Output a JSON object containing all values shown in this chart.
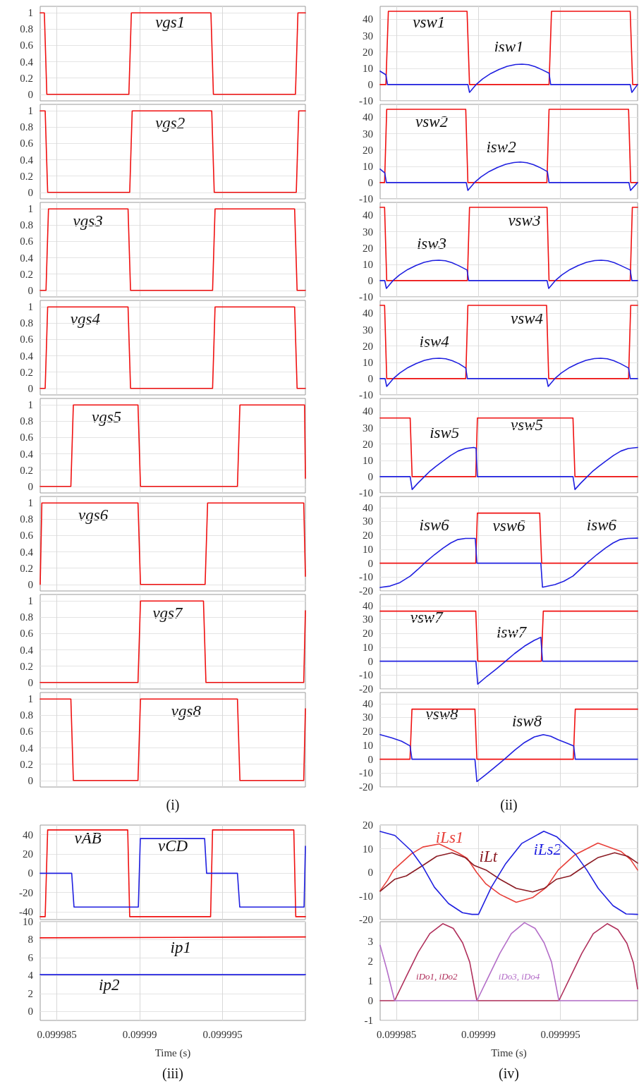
{
  "chart_data": [
    {
      "type": "line",
      "xlim": [
        0.099984,
        0.1
      ],
      "xticks": [
        0.099985,
        0.09999,
        0.099995
      ],
      "ylim": [
        -0.08,
        1.08
      ],
      "yticks": [
        0,
        0.2,
        0.4,
        0.6,
        0.8,
        1
      ],
      "grid": true,
      "marker": "none",
      "tick_labels": "y",
      "series": [
        {
          "name": "vgs1",
          "color": "#f01010",
          "x": [
            0.099984,
            0.09998425,
            0.0999844,
            0.09998935,
            0.0999895,
            0.0999943,
            0.09999445,
            0.0999994,
            0.09999955,
            0.1
          ],
          "values": [
            1,
            1,
            0,
            0,
            1,
            1,
            0,
            0,
            1,
            1
          ]
        }
      ]
    },
    {
      "type": "line",
      "xlim": [
        0.099984,
        0.1
      ],
      "xticks": [
        0.099985,
        0.09999,
        0.099995
      ],
      "ylim": [
        -0.08,
        1.08
      ],
      "yticks": [
        0,
        0.2,
        0.4,
        0.6,
        0.8,
        1
      ],
      "grid": true,
      "marker": "none",
      "tick_labels": "y",
      "series": [
        {
          "name": "vgs2",
          "color": "#f01010",
          "x": [
            0.099984,
            0.0999843,
            0.09998445,
            0.0999894,
            0.09998955,
            0.09999435,
            0.0999945,
            0.09999945,
            0.0999996,
            0.1
          ],
          "values": [
            1,
            1,
            0,
            0,
            1,
            1,
            0,
            0,
            1,
            1
          ]
        }
      ]
    },
    {
      "type": "line",
      "xlim": [
        0.099984,
        0.1
      ],
      "xticks": [
        0.099985,
        0.09999,
        0.099995
      ],
      "ylim": [
        -0.08,
        1.08
      ],
      "yticks": [
        0,
        0.2,
        0.4,
        0.6,
        0.8,
        1
      ],
      "grid": true,
      "marker": "none",
      "tick_labels": "y",
      "series": [
        {
          "name": "vgs3",
          "color": "#f01010",
          "x": [
            0.099984,
            0.09998435,
            0.0999845,
            0.0999893,
            0.09998945,
            0.0999944,
            0.09999455,
            0.09999935,
            0.0999995,
            0.1
          ],
          "values": [
            0,
            0,
            1,
            1,
            0,
            0,
            1,
            1,
            0,
            0
          ]
        }
      ]
    },
    {
      "type": "line",
      "xlim": [
        0.099984,
        0.1
      ],
      "xticks": [
        0.099985,
        0.09999,
        0.099995
      ],
      "ylim": [
        -0.08,
        1.08
      ],
      "yticks": [
        0,
        0.2,
        0.4,
        0.6,
        0.8,
        1
      ],
      "grid": true,
      "marker": "none",
      "tick_labels": "y",
      "series": [
        {
          "name": "vgs4",
          "color": "#f01010",
          "x": [
            0.099984,
            0.0999843,
            0.09998445,
            0.0999893,
            0.09998945,
            0.0999944,
            0.09999455,
            0.09999935,
            0.0999995,
            0.1
          ],
          "values": [
            0,
            0,
            1,
            1,
            0,
            0,
            1,
            1,
            0,
            0
          ]
        }
      ]
    },
    {
      "type": "line",
      "xlim": [
        0.099984,
        0.1
      ],
      "xticks": [
        0.099985,
        0.09999,
        0.099995
      ],
      "ylim": [
        -0.08,
        1.08
      ],
      "yticks": [
        0,
        0.2,
        0.4,
        0.6,
        0.8,
        1
      ],
      "grid": true,
      "marker": "none",
      "tick_labels": "y",
      "series": [
        {
          "name": "vgs5",
          "color": "#f01010",
          "x": [
            0.099984,
            0.09998585,
            0.099986,
            0.0999899,
            0.09999005,
            0.0999959,
            0.09999605,
            0.09999995,
            0.1
          ],
          "values": [
            0,
            0,
            1,
            1,
            0,
            0,
            1,
            1,
            0.1
          ]
        }
      ]
    },
    {
      "type": "line",
      "xlim": [
        0.099984,
        0.1
      ],
      "xticks": [
        0.099985,
        0.09999,
        0.099995
      ],
      "ylim": [
        -0.08,
        1.08
      ],
      "yticks": [
        0,
        0.2,
        0.4,
        0.6,
        0.8,
        1
      ],
      "grid": true,
      "marker": "none",
      "tick_labels": "y",
      "series": [
        {
          "name": "vgs6",
          "color": "#f01010",
          "x": [
            0.099984,
            0.0999841,
            0.0999899,
            0.09999005,
            0.09999395,
            0.0999941,
            0.0999999,
            0.1
          ],
          "values": [
            0,
            1,
            1,
            0,
            0,
            1,
            1,
            0.1
          ]
        }
      ]
    },
    {
      "type": "line",
      "xlim": [
        0.099984,
        0.1
      ],
      "xticks": [
        0.099985,
        0.09999,
        0.099995
      ],
      "ylim": [
        -0.08,
        1.08
      ],
      "yticks": [
        0,
        0.2,
        0.4,
        0.6,
        0.8,
        1
      ],
      "grid": true,
      "marker": "none",
      "tick_labels": "y",
      "series": [
        {
          "name": "vgs7",
          "color": "#f01010",
          "x": [
            0.099984,
            0.0999899,
            0.09999005,
            0.09999385,
            0.099994,
            0.0999999,
            0.1
          ],
          "values": [
            0,
            0,
            1,
            1,
            0,
            0,
            0.88
          ]
        }
      ]
    },
    {
      "type": "line",
      "xlim": [
        0.099984,
        0.1
      ],
      "xticks": [
        0.099985,
        0.09999,
        0.099995
      ],
      "ylim": [
        -0.08,
        1.08
      ],
      "yticks": [
        0,
        0.2,
        0.4,
        0.6,
        0.8,
        1
      ],
      "grid": true,
      "marker": "none",
      "tick_labels": "y",
      "annotations": [
        "(i)"
      ],
      "series": [
        {
          "name": "vgs8",
          "color": "#f01010",
          "x": [
            0.099984,
            0.09998585,
            0.099986,
            0.0999899,
            0.09999005,
            0.0999959,
            0.09999605,
            0.0999999,
            0.1
          ],
          "values": [
            1,
            1,
            0,
            0,
            1,
            1,
            0,
            0,
            0.88
          ]
        }
      ]
    },
    {
      "type": "line",
      "xlim": [
        0.099984,
        0.0999997
      ],
      "xticks": [
        0.099985,
        0.09999,
        0.099995
      ],
      "ylim": [
        -10,
        48
      ],
      "yticks": [
        -10,
        0,
        10,
        20,
        30,
        40
      ],
      "grid": true,
      "marker": "none",
      "tick_labels": "y",
      "series": [
        {
          "name": "vsw1",
          "color": "#f01010",
          "x": [
            0.099984,
            0.09998435,
            0.0999845,
            0.0999893,
            0.09998945,
            0.0999943,
            0.09999445,
            0.09999925,
            0.0999994,
            0.0999997
          ],
          "values": [
            0,
            0,
            45,
            45,
            0,
            0,
            45,
            45,
            0,
            0
          ]
        },
        {
          "name": "isw1",
          "color": "#2020e0",
          "x": [
            0.099984,
            0.09998435,
            0.09998445,
            0.09998935,
            0.09998945,
            0.09998985,
            0.09999025,
            0.09999075,
            0.09999125,
            0.09999175,
            0.09999225,
            0.09999265,
            0.09999305,
            0.09999345,
            0.09999385,
            0.0999943,
            0.0999944,
            0.09999925,
            0.09999935,
            0.0999997
          ],
          "values": [
            8.2,
            6,
            0,
            0,
            -4.8,
            0,
            3.5,
            6.8,
            9.3,
            11.2,
            12.3,
            12.5,
            12.2,
            11,
            9.2,
            7,
            0,
            0,
            -4.8,
            0
          ]
        }
      ]
    },
    {
      "type": "line",
      "xlim": [
        0.099984,
        0.0999997
      ],
      "xticks": [
        0.099985,
        0.09999,
        0.099995
      ],
      "ylim": [
        -10,
        48
      ],
      "yticks": [
        -10,
        0,
        10,
        20,
        30,
        40
      ],
      "grid": true,
      "marker": "none",
      "tick_labels": "y",
      "series": [
        {
          "name": "vsw2",
          "color": "#f01010",
          "x": [
            0.099984,
            0.09998427,
            0.0999844,
            0.09998922,
            0.09998935,
            0.09999417,
            0.0999943,
            0.09999915,
            0.09999928,
            0.0999997
          ],
          "values": [
            0,
            0,
            45,
            45,
            0,
            0,
            45,
            45,
            0,
            0
          ]
        },
        {
          "name": "isw2",
          "color": "#2020e0",
          "x": [
            0.099984,
            0.09998428,
            0.09998438,
            0.09998925,
            0.09998935,
            0.09998975,
            0.09999015,
            0.09999065,
            0.09999115,
            0.09999165,
            0.09999215,
            0.09999255,
            0.09999295,
            0.09999335,
            0.09999375,
            0.0999942,
            0.0999943,
            0.09999917,
            0.09999927,
            0.0999997
          ],
          "values": [
            8.2,
            6,
            0,
            0,
            -4.8,
            0,
            3.5,
            6.8,
            9.3,
            11.2,
            12.3,
            12.6,
            12.2,
            11,
            9.2,
            6.7,
            0,
            0,
            -4.8,
            0
          ]
        }
      ]
    },
    {
      "type": "line",
      "xlim": [
        0.099984,
        0.0999997
      ],
      "xticks": [
        0.099985,
        0.09999,
        0.099995
      ],
      "ylim": [
        -10,
        48
      ],
      "yticks": [
        -10,
        0,
        10,
        20,
        30,
        40
      ],
      "grid": true,
      "marker": "none",
      "tick_labels": "y",
      "series": [
        {
          "name": "vsw3",
          "color": "#f01010",
          "x": [
            0.099984,
            0.09998427,
            0.0999844,
            0.09998932,
            0.09998945,
            0.09999418,
            0.0999943,
            0.09999925,
            0.09999938,
            0.0999997
          ],
          "values": [
            45,
            45,
            0,
            0,
            45,
            45,
            0,
            0,
            45,
            45
          ]
        },
        {
          "name": "isw3",
          "color": "#2020e0",
          "x": [
            0.099984,
            0.09998428,
            0.09998438,
            0.09998478,
            0.09998518,
            0.09998568,
            0.09998618,
            0.09998668,
            0.09998718,
            0.09998758,
            0.09998798,
            0.09998838,
            0.09998878,
            0.0999893,
            0.0999894,
            0.09999418,
            0.09999428,
            0.09999468,
            0.09999508,
            0.09999558,
            0.09999608,
            0.09999658,
            0.09999708,
            0.09999748,
            0.09999788,
            0.09999828,
            0.09999868,
            0.09999925,
            0.09999935,
            0.0999997
          ],
          "values": [
            0,
            0,
            -4.8,
            0,
            3.5,
            6.8,
            9.3,
            11.2,
            12.3,
            12.5,
            12.2,
            11,
            9.2,
            6.5,
            0,
            0,
            -4.8,
            0,
            3.5,
            6.8,
            9.3,
            11.2,
            12.3,
            12.5,
            12.2,
            11,
            9.2,
            6.5,
            0,
            0
          ]
        }
      ]
    },
    {
      "type": "line",
      "xlim": [
        0.099984,
        0.0999997
      ],
      "xticks": [
        0.099985,
        0.09999,
        0.099995
      ],
      "ylim": [
        -10,
        48
      ],
      "yticks": [
        -10,
        0,
        10,
        20,
        30,
        40
      ],
      "grid": true,
      "marker": "none",
      "tick_labels": "y",
      "series": [
        {
          "name": "vsw4",
          "color": "#f01010",
          "x": [
            0.099984,
            0.09998427,
            0.0999844,
            0.09998922,
            0.09998935,
            0.09999415,
            0.09999428,
            0.09999915,
            0.09999928,
            0.0999997
          ],
          "values": [
            45,
            45,
            0,
            0,
            45,
            45,
            0,
            0,
            45,
            45
          ]
        },
        {
          "name": "isw4",
          "color": "#2020e0",
          "x": [
            0.099984,
            0.0999843,
            0.0999844,
            0.0999848,
            0.0999852,
            0.0999857,
            0.0999862,
            0.0999867,
            0.0999872,
            0.0999876,
            0.099988,
            0.0999884,
            0.0999888,
            0.09998922,
            0.09998932,
            0.09999415,
            0.09999425,
            0.09999465,
            0.09999505,
            0.09999555,
            0.09999605,
            0.09999655,
            0.09999705,
            0.09999745,
            0.09999785,
            0.09999825,
            0.09999865,
            0.09999915,
            0.09999925,
            0.0999997
          ],
          "values": [
            0,
            0,
            -4.8,
            0,
            3.5,
            6.8,
            9.3,
            11.2,
            12.3,
            12.5,
            12.2,
            11,
            9.2,
            6.5,
            0,
            0,
            -4.8,
            0,
            3.5,
            6.8,
            9.3,
            11.2,
            12.3,
            12.5,
            12.2,
            11,
            9.2,
            6.5,
            0,
            0
          ]
        }
      ]
    },
    {
      "type": "line",
      "xlim": [
        0.099984,
        0.0999997
      ],
      "xticks": [
        0.099985,
        0.09999,
        0.099995
      ],
      "ylim": [
        -10,
        48
      ],
      "yticks": [
        -10,
        0,
        10,
        20,
        30,
        40
      ],
      "grid": true,
      "marker": "none",
      "tick_labels": "y",
      "series": [
        {
          "name": "vsw5",
          "color": "#f01010",
          "x": [
            0.099984,
            0.09998583,
            0.09998595,
            0.09998983,
            0.09998993,
            0.09999576,
            0.09999588,
            0.0999997
          ],
          "values": [
            36,
            36,
            0,
            0,
            36,
            36,
            0,
            0
          ]
        },
        {
          "name": "isw5",
          "color": "#2020e0",
          "x": [
            0.099984,
            0.09998583,
            0.09998595,
            0.0999863,
            0.0999867,
            0.099987,
            0.0999874,
            0.0999878,
            0.0999883,
            0.09998875,
            0.0999892,
            0.0999897,
            0.09998985,
            0.09998993,
            0.09999576,
            0.09999588,
            0.09999623,
            0.09999663,
            0.09999693,
            0.09999733,
            0.09999773,
            0.09999823,
            0.09999868,
            0.09999913,
            0.0999997
          ],
          "values": [
            0,
            0,
            -7.9,
            -4,
            0,
            3,
            6.3,
            9.3,
            13,
            15.7,
            17.3,
            17.9,
            17.5,
            0,
            0,
            -7.9,
            -4,
            0,
            3,
            6.3,
            9.3,
            13,
            15.7,
            17.3,
            17.9
          ]
        }
      ]
    },
    {
      "type": "line",
      "xlim": [
        0.099984,
        0.0999997
      ],
      "xticks": [
        0.099985,
        0.09999,
        0.099995
      ],
      "ylim": [
        -20,
        48
      ],
      "yticks": [
        -20,
        -10,
        0,
        10,
        20,
        30,
        40
      ],
      "grid": true,
      "marker": "none",
      "tick_labels": "y",
      "series": [
        {
          "name": "vsw6",
          "color": "#f01010",
          "x": [
            0.099984,
            0.09998983,
            0.09998993,
            0.09999373,
            0.09999385,
            0.0999997
          ],
          "values": [
            0,
            0,
            36,
            36,
            0,
            0
          ]
        },
        {
          "name": "isw6",
          "color": "#2020e0",
          "x": [
            0.099984,
            0.0999846,
            0.0999852,
            0.09998584,
            0.0999863,
            0.0999867,
            0.0999873,
            0.09998783,
            0.0999883,
            0.09998874,
            0.0999892,
            0.0999898,
            0.0999899,
            0.0999938,
            0.0999939,
            0.09999466,
            0.0999952,
            0.09999576,
            0.0999962,
            0.0999966,
            0.0999972,
            0.09999773,
            0.0999982,
            0.09999864,
            0.0999991,
            0.0999997
          ],
          "values": [
            -17.5,
            -16.5,
            -14,
            -9.3,
            -4.5,
            0,
            6,
            10.8,
            14.5,
            17,
            17.8,
            17.8,
            0,
            0,
            -17.3,
            -15.4,
            -13,
            -9.3,
            -4.5,
            0,
            6,
            10.8,
            14.5,
            17,
            17.8,
            18
          ]
        }
      ]
    },
    {
      "type": "line",
      "xlim": [
        0.099984,
        0.0999997
      ],
      "xticks": [
        0.099985,
        0.09999,
        0.099995
      ],
      "ylim": [
        -20,
        48
      ],
      "yticks": [
        -20,
        -10,
        0,
        10,
        20,
        30,
        40
      ],
      "grid": true,
      "marker": "none",
      "tick_labels": "y",
      "series": [
        {
          "name": "vsw7",
          "color": "#f01010",
          "x": [
            0.099984,
            0.09998983,
            0.09998995,
            0.09999383,
            0.09999395,
            0.0999997
          ],
          "values": [
            36,
            36,
            0,
            0,
            36,
            36
          ]
        },
        {
          "name": "isw7",
          "color": "#2020e0",
          "x": [
            0.099984,
            0.09998984,
            0.09998995,
            0.0999905,
            0.0999911,
            0.09999165,
            0.0999922,
            0.0999928,
            0.0999934,
            0.0999938,
            0.0999939,
            0.0999997
          ],
          "values": [
            0,
            0,
            -16.5,
            -11,
            -5.5,
            0,
            5.5,
            10.8,
            15,
            17.2,
            0,
            0
          ]
        }
      ]
    },
    {
      "type": "line",
      "xlim": [
        0.099984,
        0.0999997
      ],
      "xticks": [
        0.099985,
        0.09999,
        0.099995
      ],
      "ylim": [
        -20,
        48
      ],
      "yticks": [
        -20,
        -10,
        0,
        10,
        20,
        30,
        40
      ],
      "grid": true,
      "marker": "none",
      "tick_labels": "y",
      "annotations": [
        "(ii)"
      ],
      "series": [
        {
          "name": "vsw8",
          "color": "#f01010",
          "x": [
            0.099984,
            0.09998582,
            0.09998594,
            0.09998978,
            0.0999899,
            0.09999578,
            0.0999959,
            0.0999997
          ],
          "values": [
            0,
            0,
            36,
            36,
            0,
            0,
            36,
            36
          ]
        },
        {
          "name": "isw8",
          "color": "#2020e0",
          "x": [
            0.099984,
            0.0999847,
            0.0999853,
            0.09998582,
            0.09998594,
            0.09998978,
            0.0999899,
            0.0999905,
            0.09999105,
            0.09999158,
            0.0999922,
            0.0999928,
            0.0999934,
            0.09999395,
            0.0999944,
            0.09999486,
            0.0999953,
            0.0999958,
            0.0999959,
            0.0999997
          ],
          "values": [
            17.7,
            15.4,
            13,
            9.6,
            0,
            0,
            -16.1,
            -10.5,
            -5.2,
            0,
            6.5,
            12,
            16,
            17.7,
            16.5,
            14,
            12,
            9.6,
            0,
            0
          ]
        }
      ]
    },
    {
      "type": "line",
      "xlim": [
        0.099984,
        0.1
      ],
      "xticks": [
        0.099985,
        0.09999,
        0.099995
      ],
      "ylim": [
        -48,
        50
      ],
      "yticks": [
        -40,
        -20,
        0,
        20,
        40
      ],
      "grid": true,
      "marker": "none",
      "tick_labels": "y",
      "series": [
        {
          "name": "vAB",
          "color": "#f01010",
          "x": [
            0.099984,
            0.0999843,
            0.09998445,
            0.09998928,
            0.0999894,
            0.09999428,
            0.0999944,
            0.0999993,
            0.09999942,
            0.1
          ],
          "values": [
            -45,
            -45,
            45,
            45,
            -45,
            -45,
            45,
            45,
            -45,
            -45
          ]
        },
        {
          "name": "vCD",
          "color": "#2020e0",
          "x": [
            0.099984,
            0.0999859,
            0.09998604,
            0.09998992,
            0.09999004,
            0.09999392,
            0.09999404,
            0.0999959,
            0.09999604,
            0.09999992,
            0.1
          ],
          "values": [
            0,
            0,
            -35,
            -35,
            36,
            36,
            0,
            0,
            -35,
            -35,
            28
          ]
        }
      ]
    },
    {
      "type": "line",
      "xlim": [
        0.099984,
        0.1
      ],
      "xticks": [
        0.099985,
        0.09999,
        0.099995
      ],
      "ylim": [
        -1,
        10
      ],
      "yticks": [
        0,
        2,
        4,
        6,
        8,
        10
      ],
      "grid": true,
      "marker": "none",
      "xlabel": "Time (s)",
      "annotations": [
        "(iii)"
      ],
      "series": [
        {
          "name": "ip1",
          "color": "#f01010",
          "x": [
            0.099984,
            0.1
          ],
          "values": [
            8.2,
            8.3
          ]
        },
        {
          "name": "ip2",
          "color": "#2020e0",
          "x": [
            0.099984,
            0.1
          ],
          "values": [
            4.1,
            4.1
          ]
        }
      ]
    },
    {
      "type": "line",
      "xlim": [
        0.099984,
        0.0999997
      ],
      "xticks": [
        0.099985,
        0.09999,
        0.099995
      ],
      "ylim": [
        -20,
        20
      ],
      "yticks": [
        -20,
        -10,
        0,
        10,
        20
      ],
      "grid": true,
      "marker": "none",
      "tick_labels": "y",
      "series": [
        {
          "name": "iLs1",
          "color": "#e8403a",
          "x": [
            0.099984,
            0.09998445,
            0.09998482,
            0.0999859,
            0.0999866,
            0.0999876,
            0.09998874,
            0.09998931,
            0.09998988,
            0.09999045,
            0.0999913,
            0.0999923,
            0.0999933,
            0.09999415,
            0.09999486,
            0.09999585,
            0.09999728,
            0.0999987,
            0.09999927,
            0.0999997
          ],
          "values": [
            -7.8,
            -3.4,
            1,
            7.8,
            10.7,
            12,
            8.3,
            5.9,
            0,
            -4.9,
            -9.3,
            -12.7,
            -10.7,
            -6.3,
            1,
            7.3,
            12.4,
            8.8,
            5.4,
            1
          ]
        },
        {
          "name": "iLt",
          "color": "#8b1c24",
          "x": [
            0.099984,
            0.0999849,
            0.0999856,
            0.0999866,
            0.09998745,
            0.09998838,
            0.09998917,
            0.09998974,
            0.09999045,
            0.0999913,
            0.0999923,
            0.0999933,
            0.099994,
            0.09999476,
            0.0999956,
            0.0999966,
            0.0999973,
            0.0999983,
            0.0999991,
            0.0999997
          ],
          "values": [
            -8,
            -2.9,
            -1.5,
            2.9,
            6.8,
            8.3,
            6.3,
            2.9,
            1,
            -2.9,
            -6.8,
            -8.3,
            -6.8,
            -2.9,
            -1.5,
            3.2,
            6.3,
            8.3,
            6.8,
            3.9
          ]
        },
        {
          "name": "iLs2",
          "color": "#2020e0",
          "x": [
            0.099984,
            0.0999849,
            0.0999859,
            0.0999866,
            0.09998731,
            0.09998817,
            0.09998902,
            0.0999896,
            0.09999,
            0.09999078,
            0.09999163,
            0.09999263,
            0.09999398,
            0.09999476,
            0.0999959,
            0.0999966,
            0.0999973,
            0.0999982,
            0.099999,
            0.0999997
          ],
          "values": [
            17.3,
            15.6,
            9.1,
            2.4,
            -6.3,
            -13.2,
            -17.1,
            -17.8,
            -17.8,
            -6.3,
            3.4,
            12.2,
            17.4,
            15.1,
            7.8,
            1,
            -6.8,
            -14.1,
            -17.6,
            -17.8
          ]
        }
      ]
    },
    {
      "type": "line",
      "xlim": [
        0.099984,
        0.0999997
      ],
      "xticks": [
        0.099985,
        0.09999,
        0.099995
      ],
      "ylim": [
        -1,
        4
      ],
      "yticks": [
        -1,
        0,
        1,
        2,
        3
      ],
      "grid": true,
      "marker": "none",
      "xlabel": "Time (s)",
      "annotations": [
        "(iv)"
      ],
      "series": [
        {
          "name": "iDo1, iDo2",
          "color": "#b0305c",
          "x": [
            0.099984,
            0.09998488,
            0.0999856,
            0.09998632,
            0.09998703,
            0.09998782,
            0.09998846,
            0.09998903,
            0.09998946,
            0.0999899,
            0.0999949,
            0.0999956,
            0.0999963,
            0.099997,
            0.09999785,
            0.0999985,
            0.09999905,
            0.09999945,
            0.0999997
          ],
          "values": [
            0,
            0,
            1.24,
            2.45,
            3.4,
            3.9,
            3.66,
            2.93,
            1.96,
            0,
            0,
            1.2,
            2.4,
            3.4,
            3.9,
            3.6,
            2.9,
            1.9,
            0.6
          ]
        },
        {
          "name": "iDo3, iDo4",
          "color": "#b46ec8",
          "x": [
            0.099984,
            0.0999844,
            0.09998488,
            0.0999899,
            0.0999906,
            0.0999913,
            0.099992,
            0.0999928,
            0.09999345,
            0.099994,
            0.09999445,
            0.0999949,
            0.0999997
          ],
          "values": [
            2.8,
            1.6,
            0,
            0,
            1.2,
            2.4,
            3.4,
            3.95,
            3.66,
            2.93,
            1.96,
            0,
            0
          ]
        }
      ]
    }
  ]
}
